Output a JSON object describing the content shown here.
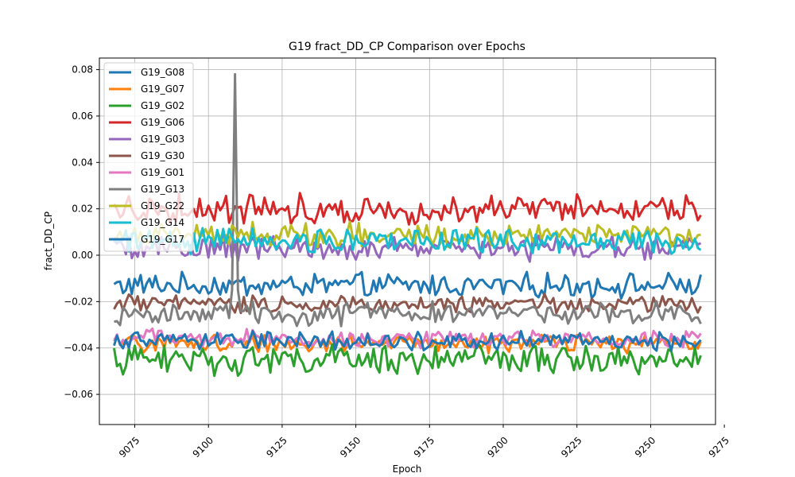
{
  "chart_data": {
    "type": "line",
    "title": "G19 fract_DD_CP Comparison over Epochs",
    "xlabel": "Epoch",
    "ylabel": "fract_DD_CP",
    "xlim": [
      9063,
      9272
    ],
    "ylim": [
      -0.073,
      0.085
    ],
    "x_start": 9068,
    "x_end": 9267,
    "xticks": [
      9075,
      9100,
      9125,
      9150,
      9175,
      9200,
      9225,
      9250,
      9275
    ],
    "yticks": [
      -0.06,
      -0.04,
      -0.02,
      0.0,
      0.02,
      0.04,
      0.06,
      0.08
    ],
    "ytick_labels": [
      "−0.06",
      "−0.04",
      "−0.02",
      "0.00",
      "0.02",
      "0.04",
      "0.06",
      "0.08"
    ],
    "grid": true,
    "legend_position": "top-left",
    "series": [
      {
        "name": "G19_G08",
        "color": "#1f77b4",
        "mean": -0.013,
        "amp": 0.004
      },
      {
        "name": "G19_G07",
        "color": "#ff7f0e",
        "mean": -0.038,
        "amp": 0.003
      },
      {
        "name": "G19_G02",
        "color": "#2ca02c",
        "mean": -0.045,
        "amp": 0.005
      },
      {
        "name": "G19_G06",
        "color": "#d62728",
        "mean": 0.02,
        "amp": 0.005
      },
      {
        "name": "G19_G03",
        "color": "#9467bd",
        "mean": 0.003,
        "amp": 0.004
      },
      {
        "name": "G19_G30",
        "color": "#8c564b",
        "mean": -0.021,
        "amp": 0.003
      },
      {
        "name": "G19_G01",
        "color": "#e377c2",
        "mean": -0.036,
        "amp": 0.003
      },
      {
        "name": "G19_G13",
        "color": "#7f7f7f",
        "mean": -0.025,
        "amp": 0.004,
        "spike_epoch": 9109,
        "spike_value": 0.078
      },
      {
        "name": "G19_G22",
        "color": "#bcbd22",
        "mean": 0.009,
        "amp": 0.004
      },
      {
        "name": "G19_G14",
        "color": "#17becf",
        "mean": 0.006,
        "amp": 0.004
      },
      {
        "name": "G19_G17",
        "color": "#1f77b4",
        "mean": -0.037,
        "amp": 0.003
      }
    ]
  }
}
